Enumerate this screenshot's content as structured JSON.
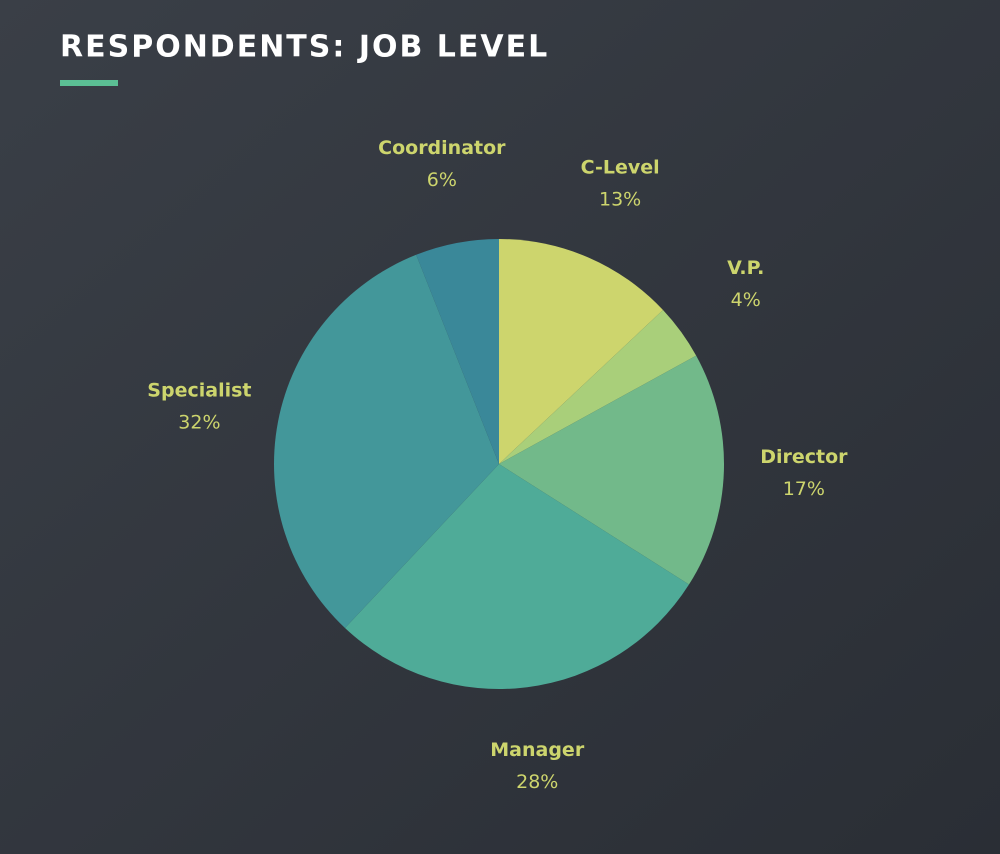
{
  "chart_data": {
    "type": "pie",
    "title": "RESPONDENTS: JOB LEVEL",
    "categories": [
      "C-Level",
      "V.P.",
      "Director",
      "Manager",
      "Specialist",
      "Coordinator"
    ],
    "values": [
      13,
      4,
      17,
      28,
      32,
      6
    ],
    "value_labels": [
      "13%",
      "4%",
      "17%",
      "28%",
      "32%",
      "6%"
    ],
    "colors": [
      "#cdd56d",
      "#a9cf7a",
      "#72b98a",
      "#4fab98",
      "#43979a",
      "#3a8899"
    ]
  }
}
